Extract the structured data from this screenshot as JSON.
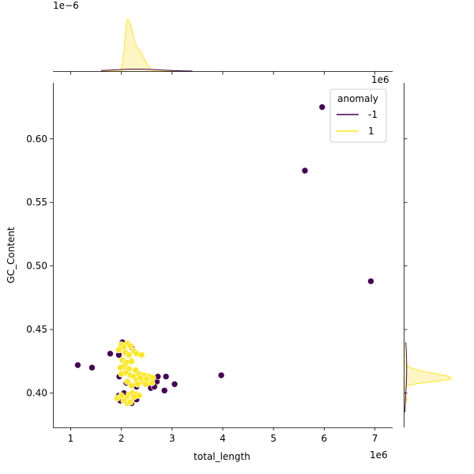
{
  "chart_data": {
    "type": "scatter",
    "xlabel": "total_length",
    "ylabel": "GC_Content",
    "x_offset_label": "1e6",
    "x_ticks": [
      1,
      2,
      3,
      4,
      5,
      6,
      7
    ],
    "y_ticks": [
      0.4,
      0.45,
      0.5,
      0.55,
      0.6
    ],
    "y_tick_labels": [
      "0.40",
      "0.45",
      "0.50",
      "0.55",
      "0.60"
    ],
    "xlim": [
      0.65,
      7.35
    ],
    "ylim": [
      0.373,
      0.644
    ],
    "marginal_top_offset_label": "1e−6",
    "marginal_right_offset_label": "1e6",
    "legend": {
      "title": "anomaly",
      "placement": "top-right",
      "entries": [
        {
          "label": "-1",
          "color": "#440154"
        },
        {
          "label": "1",
          "color": "#fde725"
        }
      ]
    },
    "colors": {
      "anomaly": "#440154",
      "normal": "#fde725",
      "normal_fill": "#fdf5c4"
    },
    "series": [
      {
        "name": "-1",
        "color": "#440154",
        "points": [
          [
            1.14,
            0.422
          ],
          [
            1.42,
            0.42
          ],
          [
            1.78,
            0.431
          ],
          [
            1.95,
            0.43
          ],
          [
            2.02,
            0.44
          ],
          [
            2.1,
            0.438
          ],
          [
            2.05,
            0.425
          ],
          [
            2.2,
            0.436
          ],
          [
            1.96,
            0.413
          ],
          [
            2.1,
            0.408
          ],
          [
            2.3,
            0.405
          ],
          [
            2.48,
            0.412
          ],
          [
            2.58,
            0.404
          ],
          [
            2.7,
            0.409
          ],
          [
            2.72,
            0.413
          ],
          [
            2.85,
            0.402
          ],
          [
            2.88,
            0.413
          ],
          [
            3.05,
            0.407
          ],
          [
            2.65,
            0.405
          ],
          [
            1.95,
            0.398
          ],
          [
            2.2,
            0.392
          ],
          [
            2.3,
            0.395
          ],
          [
            1.98,
            0.394
          ],
          [
            2.05,
            0.4
          ],
          [
            2.4,
            0.414
          ],
          [
            3.97,
            0.414
          ],
          [
            5.62,
            0.575
          ],
          [
            5.96,
            0.625
          ],
          [
            6.92,
            0.488
          ]
        ]
      },
      {
        "name": "1",
        "color": "#fde725",
        "points": [
          [
            2.0,
            0.438
          ],
          [
            2.05,
            0.436
          ],
          [
            2.12,
            0.439
          ],
          [
            2.18,
            0.437
          ],
          [
            2.25,
            0.433
          ],
          [
            1.95,
            0.434
          ],
          [
            2.08,
            0.432
          ],
          [
            2.3,
            0.431
          ],
          [
            2.15,
            0.43
          ],
          [
            2.4,
            0.43
          ],
          [
            2.02,
            0.426
          ],
          [
            2.1,
            0.424
          ],
          [
            2.2,
            0.425
          ],
          [
            2.05,
            0.421
          ],
          [
            2.15,
            0.419
          ],
          [
            2.08,
            0.416
          ],
          [
            2.18,
            0.414
          ],
          [
            2.25,
            0.413
          ],
          [
            2.35,
            0.415
          ],
          [
            2.45,
            0.414
          ],
          [
            2.55,
            0.413
          ],
          [
            2.62,
            0.412
          ],
          [
            2.3,
            0.41
          ],
          [
            2.4,
            0.409
          ],
          [
            2.12,
            0.409
          ],
          [
            2.5,
            0.411
          ],
          [
            2.2,
            0.406
          ],
          [
            2.32,
            0.407
          ],
          [
            2.6,
            0.408
          ],
          [
            2.0,
            0.415
          ],
          [
            1.98,
            0.42
          ],
          [
            2.28,
            0.418
          ],
          [
            2.38,
            0.412
          ],
          [
            2.48,
            0.407
          ],
          [
            2.15,
            0.399
          ],
          [
            2.22,
            0.4
          ],
          [
            2.3,
            0.399
          ],
          [
            2.1,
            0.396
          ],
          [
            2.25,
            0.397
          ],
          [
            1.92,
            0.396
          ],
          [
            2.05,
            0.394
          ],
          [
            2.12,
            0.392
          ],
          [
            2.18,
            0.393
          ],
          [
            2.35,
            0.398
          ],
          [
            2.0,
            0.398
          ]
        ]
      }
    ],
    "marginal_x": {
      "normal": {
        "center": 2.12,
        "peak": 0.9,
        "sigma_left": 0.05,
        "sigma_right": 0.11,
        "shoulder_center": 2.38,
        "shoulder_peak": 0.28,
        "shoulder_sigma": 0.1
      },
      "anomaly": {
        "center": 2.3,
        "peak": 0.035,
        "sigma": 0.45
      }
    },
    "marginal_y": {
      "normal": {
        "center": 0.4115,
        "peak": 0.85,
        "sigma_low": 0.0025,
        "sigma_high": 0.0042,
        "secondary_center": 0.395,
        "secondary_peak": 0.05,
        "secondary_sigma": 0.002
      },
      "anomaly": {
        "center": 0.42,
        "peak": 0.04,
        "sigma": 0.02
      }
    }
  }
}
